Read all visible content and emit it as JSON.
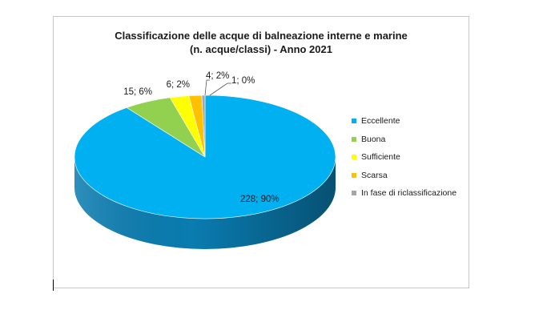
{
  "chart_data": {
    "type": "pie",
    "title_line1": "Classificazione delle acque di balneazione interne e marine",
    "title_line2": "(n. acque/classi) - Anno 2021",
    "legend_position": "right",
    "slices": [
      {
        "name": "Eccellente",
        "value": 228,
        "percent": 90,
        "label": "228; 90%",
        "color": "#00b0f0",
        "side_color": "#0a7cb0"
      },
      {
        "name": "Buona",
        "value": 15,
        "percent": 6,
        "label": "15; 6%",
        "color": "#92d050",
        "side_color": "#5f9a2c"
      },
      {
        "name": "Sufficiente",
        "value": 6,
        "percent": 2,
        "label": "6; 2%",
        "color": "#ffff00",
        "side_color": "#c9c900"
      },
      {
        "name": "Scarsa",
        "value": 4,
        "percent": 2,
        "label": "4; 2%",
        "color": "#ffc000",
        "side_color": "#c89400"
      },
      {
        "name": "In fase di riclassificazione",
        "value": 1,
        "percent": 0,
        "label": "1; 0%",
        "color": "#a6a6a6",
        "side_color": "#7a7a7a"
      }
    ]
  }
}
